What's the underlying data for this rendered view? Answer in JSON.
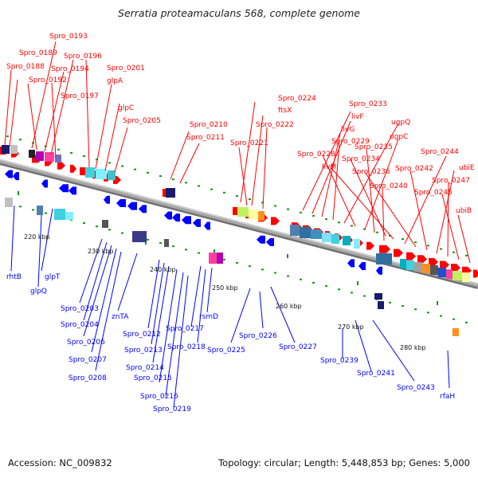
{
  "title": "Serratia proteamaculans 568, complete genome",
  "footer": {
    "accession": "Accession: NC_009832",
    "summary": "Topology: circular; Length: 5,448,853 bp; Genes: 5,000"
  },
  "colors": {
    "forward": "#ff0000",
    "reverse": "#0000ff",
    "backbone": "#a8a8a8",
    "tick_dot": "#119911"
  },
  "kbp_ticks": [
    "220 kbp",
    "230 kbp",
    "240 kbp",
    "250 kbp",
    "260 kbp",
    "270 kbp",
    "280 kbp"
  ],
  "top_labels": [
    "Spro_0193",
    "Spro_0189",
    "Spro_0196",
    "Spro_0188",
    "Spro_0194",
    "Spro_0201",
    "Spro_0192",
    "glpA",
    "Spro_0197",
    "glpC",
    "Spro_0205",
    "Spro_0210",
    "Spro_0211",
    "Spro_0224",
    "ftsX",
    "Spro_0222",
    "Spro_0221",
    "Spro_0233",
    "livF",
    "livG",
    "Spro_0229",
    "ugpQ",
    "Spro_0228",
    "ugpC",
    "Spro_0235",
    "Spro_0234",
    "livM",
    "Spro_0244",
    "Spro_0236",
    "Spro_0242",
    "ubiE",
    "Spro_0247",
    "Spro_0240",
    "Spro_0245",
    "ubiB"
  ],
  "bottom_labels": [
    "rhtB",
    "glpT",
    "glpQ",
    "Spro_0203",
    "znTA",
    "Spro_0204",
    "Spro_0212",
    "Spro_0217",
    "rsmD",
    "Spro_0206",
    "Spro_0213",
    "Spro_0218",
    "Spro_0207",
    "Spro_0214",
    "Spro_0226",
    "Spro_0225",
    "Spro_0227",
    "Spro_0208",
    "Spro_0215",
    "Spro_0239",
    "Spro_0241",
    "Spro_0216",
    "Spro_0219",
    "Spro_0243",
    "rfaH"
  ]
}
